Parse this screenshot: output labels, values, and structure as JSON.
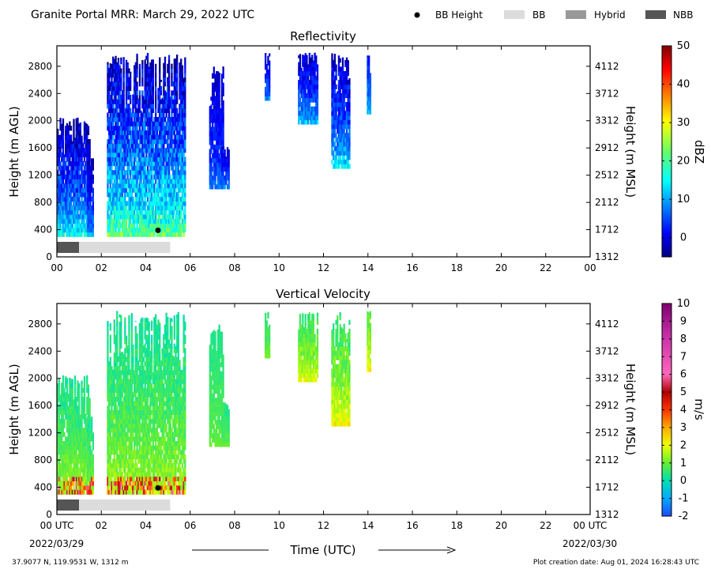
{
  "header": {
    "title": "Granite Portal MRR:  March 29, 2022 UTC",
    "legend": [
      {
        "label": "BB Height",
        "kind": "dot",
        "color": "#000000"
      },
      {
        "label": "BB",
        "kind": "box",
        "color": "#dcdcdc"
      },
      {
        "label": "Hybrid",
        "kind": "box",
        "color": "#999999"
      },
      {
        "label": "NBB",
        "kind": "box",
        "color": "#555555"
      }
    ]
  },
  "footer": {
    "location": "37.9077 N, 119.9531 W, 1312 m",
    "created": "Plot creation date: Aug 01, 2024 16:28:43 UTC",
    "time_label": "Time (UTC)",
    "start_date": "2022/03/29",
    "end_date": "2022/03/30"
  },
  "chart_data": [
    {
      "type": "heatmap",
      "title": "Reflectivity",
      "ylabel": "Height (m AGL)",
      "ylabel_right": "Height (m MSL)",
      "xlim": [
        0,
        24
      ],
      "ylim": [
        0,
        3100
      ],
      "x_ticks": [
        "00",
        "02",
        "04",
        "06",
        "08",
        "10",
        "12",
        "14",
        "16",
        "18",
        "20",
        "22",
        "00"
      ],
      "y_ticks": [
        0,
        400,
        800,
        1200,
        1600,
        2000,
        2400,
        2800
      ],
      "y_ticks_right": [
        "1312",
        "1712",
        "2112",
        "2512",
        "2912",
        "3312",
        "3712",
        "4112"
      ],
      "colorbar": {
        "label": "dBZ",
        "range": [
          -5,
          50
        ],
        "ticks": [
          0,
          10,
          20,
          30,
          40,
          50
        ],
        "colormap": "jet"
      },
      "bright_band": {
        "time": 4.55,
        "height": 390
      },
      "bb_bar": [
        {
          "start": 0,
          "end": 1.0,
          "class": "NBB"
        },
        {
          "start": 1.0,
          "end": 5.1,
          "class": "BB"
        }
      ],
      "echoes": [
        {
          "start": 0.0,
          "end": 1.45,
          "top": 2050,
          "bottom": 300,
          "min": -3,
          "max": 16
        },
        {
          "start": 1.35,
          "end": 1.6,
          "top": 1450,
          "bottom": 300,
          "min": -2,
          "max": 10
        },
        {
          "start": 2.25,
          "end": 5.75,
          "top": 3000,
          "bottom": 300,
          "min": -3,
          "max": 22
        },
        {
          "start": 6.85,
          "end": 7.45,
          "top": 2800,
          "bottom": 1000,
          "min": -2,
          "max": 8
        },
        {
          "start": 7.4,
          "end": 7.7,
          "top": 1650,
          "bottom": 1000,
          "min": -2,
          "max": 8
        },
        {
          "start": 9.35,
          "end": 9.55,
          "top": 3000,
          "bottom": 2300,
          "min": -1,
          "max": 9
        },
        {
          "start": 10.85,
          "end": 11.75,
          "top": 3000,
          "bottom": 1950,
          "min": -2,
          "max": 12
        },
        {
          "start": 12.35,
          "end": 13.15,
          "top": 3000,
          "bottom": 1300,
          "min": -2,
          "max": 14
        },
        {
          "start": 13.95,
          "end": 14.1,
          "top": 3000,
          "bottom": 2100,
          "min": 2,
          "max": 12
        }
      ]
    },
    {
      "type": "heatmap",
      "title": "Vertical Velocity",
      "ylabel": "Height (m AGL)",
      "ylabel_right": "Height (m MSL)",
      "xlim": [
        0,
        24
      ],
      "ylim": [
        0,
        3100
      ],
      "x_ticks": [
        "00 UTC",
        "02",
        "04",
        "06",
        "08",
        "10",
        "12",
        "14",
        "16",
        "18",
        "20",
        "22",
        "00 UTC"
      ],
      "y_ticks": [
        0,
        400,
        800,
        1200,
        1600,
        2000,
        2400,
        2800
      ],
      "y_ticks_right": [
        "1312",
        "1712",
        "2112",
        "2512",
        "2912",
        "3312",
        "3712",
        "4112"
      ],
      "colorbar": {
        "label": "m/s",
        "range": [
          -2,
          10
        ],
        "ticks": [
          -2,
          -1,
          0,
          1,
          2,
          3,
          4,
          5,
          6,
          7,
          8,
          9,
          10
        ],
        "colormap": "velocity"
      },
      "bright_band": {
        "time": 4.55,
        "height": 390
      },
      "bb_bar": [
        {
          "start": 0,
          "end": 1.0,
          "class": "NBB"
        },
        {
          "start": 1.0,
          "end": 5.1,
          "class": "BB"
        }
      ],
      "echoes": [
        {
          "start": 0.0,
          "end": 1.45,
          "top": 2050,
          "bottom": 300,
          "min": 0.2,
          "max": 1.5
        },
        {
          "start": 1.35,
          "end": 1.6,
          "top": 1450,
          "bottom": 300,
          "min": 0.2,
          "max": 1.5
        },
        {
          "start": 2.25,
          "end": 5.75,
          "top": 3000,
          "bottom": 300,
          "min": 0.1,
          "max": 1.6
        },
        {
          "start": 6.85,
          "end": 7.45,
          "top": 2800,
          "bottom": 1000,
          "min": 0.3,
          "max": 1.0
        },
        {
          "start": 7.4,
          "end": 7.7,
          "top": 1650,
          "bottom": 1000,
          "min": 0.3,
          "max": 1.0
        },
        {
          "start": 9.35,
          "end": 9.55,
          "top": 3000,
          "bottom": 2300,
          "min": 0.3,
          "max": 1.2
        },
        {
          "start": 10.85,
          "end": 11.75,
          "top": 3000,
          "bottom": 1950,
          "min": 0.5,
          "max": 2.0
        },
        {
          "start": 12.35,
          "end": 13.15,
          "top": 3000,
          "bottom": 1300,
          "min": 0.4,
          "max": 2.2
        },
        {
          "start": 13.95,
          "end": 14.1,
          "top": 3000,
          "bottom": 2100,
          "min": 0.8,
          "max": 2.2
        }
      ]
    }
  ]
}
